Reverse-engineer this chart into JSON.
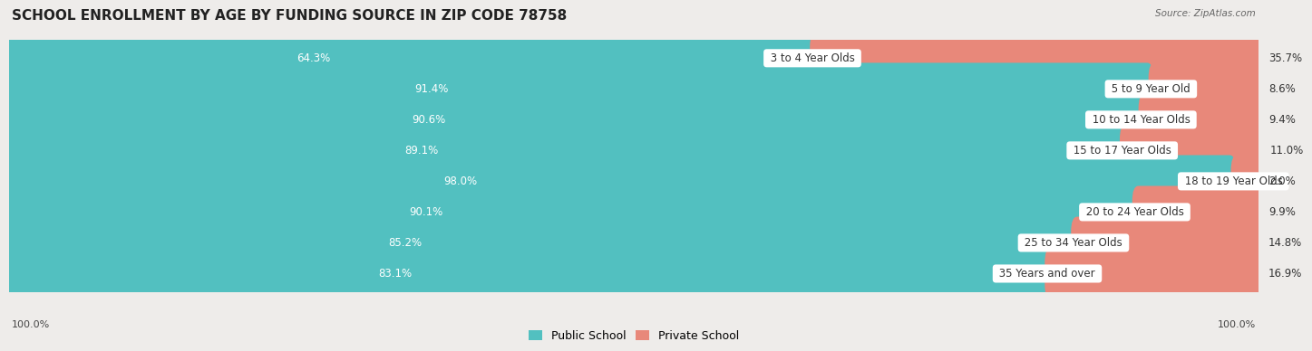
{
  "title": "SCHOOL ENROLLMENT BY AGE BY FUNDING SOURCE IN ZIP CODE 78758",
  "source": "Source: ZipAtlas.com",
  "categories": [
    "3 to 4 Year Olds",
    "5 to 9 Year Old",
    "10 to 14 Year Olds",
    "15 to 17 Year Olds",
    "18 to 19 Year Olds",
    "20 to 24 Year Olds",
    "25 to 34 Year Olds",
    "35 Years and over"
  ],
  "public_values": [
    64.3,
    91.4,
    90.6,
    89.1,
    98.0,
    90.1,
    85.2,
    83.1
  ],
  "private_values": [
    35.7,
    8.6,
    9.4,
    11.0,
    2.0,
    9.9,
    14.8,
    16.9
  ],
  "public_color": "#52C0C0",
  "private_color": "#E8887A",
  "background_color": "#EEECEA",
  "row_bg_color": "#E2DFDF",
  "title_fontsize": 11,
  "label_fontsize": 8.5,
  "value_fontsize": 8.5,
  "axis_label_fontsize": 8,
  "legend_fontsize": 9,
  "x_left_label": "100.0%",
  "x_right_label": "100.0%"
}
